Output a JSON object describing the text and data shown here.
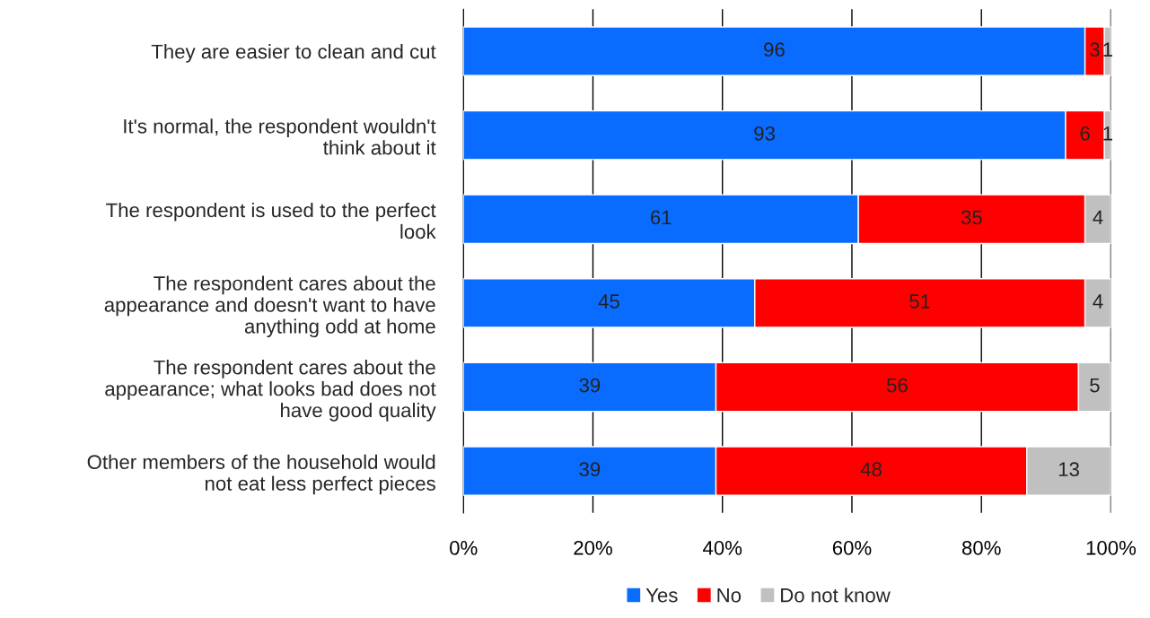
{
  "chart_data": {
    "type": "bar",
    "orientation": "horizontal",
    "stacked": true,
    "categories": [
      "They are easier to clean and cut",
      "It's normal, the respondent wouldn't think about it",
      "The respondent is used to the perfect look",
      "The respondent cares about the appearance and doesn't want to have anything odd at home",
      "The respondent cares about the appearance; what looks bad does not have good quality",
      "Other members of the household would not eat less perfect pieces"
    ],
    "series": [
      {
        "name": "Yes",
        "color": "#0a6cff",
        "values": [
          96,
          93,
          61,
          45,
          39,
          39
        ]
      },
      {
        "name": "No",
        "color": "#ff0000",
        "values": [
          3,
          6,
          35,
          51,
          56,
          48
        ]
      },
      {
        "name": "Do not know",
        "color": "#c0c0c0",
        "values": [
          1,
          1,
          4,
          4,
          5,
          13
        ]
      }
    ],
    "xlim": [
      0,
      100
    ],
    "xticks": [
      {
        "value": 0,
        "label": "0%"
      },
      {
        "value": 20,
        "label": "20%"
      },
      {
        "value": 40,
        "label": "40%"
      },
      {
        "value": 60,
        "label": "60%"
      },
      {
        "value": 80,
        "label": "80%"
      },
      {
        "value": 100,
        "label": "100%"
      }
    ],
    "grid": "x",
    "legend": "bottom",
    "data_labels": true
  }
}
